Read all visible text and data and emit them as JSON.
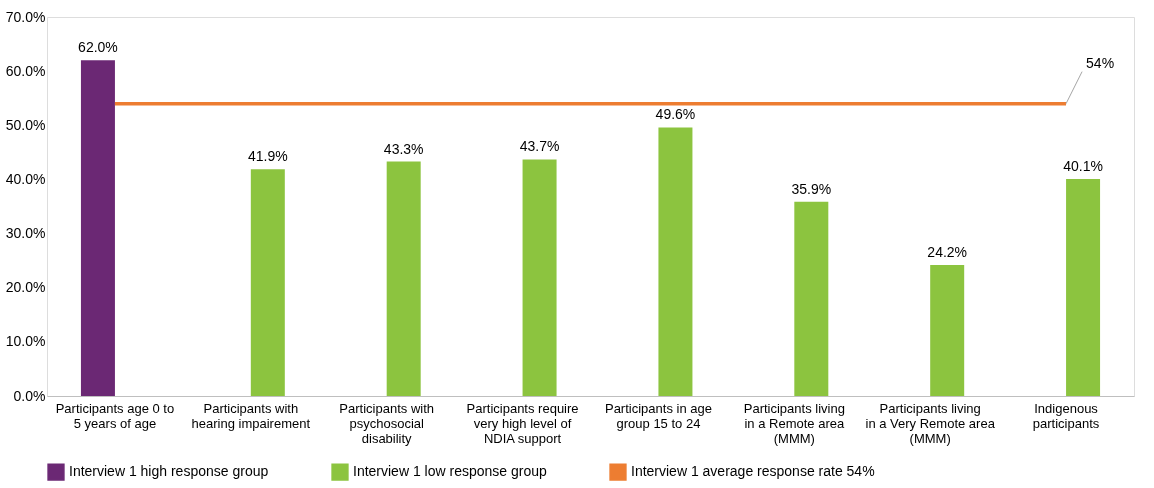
{
  "chart_data": {
    "type": "bar",
    "categories": [
      "Participants age 0 to 5 years of age",
      "Participants with hearing impairement",
      "Participants with psychosocial disability",
      "Participants require very high level of NDIA support",
      "Participants in age group 15 to 24",
      "Participants living in a Remote area (MMM)",
      "Participants living in a Very Remote area (MMM)",
      "Indigenous participants"
    ],
    "series": [
      {
        "name": "Interview 1 high response group",
        "color": "#6b2874",
        "values": [
          62.0,
          null,
          null,
          null,
          null,
          null,
          null,
          null
        ],
        "value_labels": [
          "62.0%",
          null,
          null,
          null,
          null,
          null,
          null,
          null
        ]
      },
      {
        "name": "Interview 1 low response group",
        "color": "#8cc43f",
        "values": [
          null,
          41.9,
          43.3,
          43.7,
          49.6,
          35.9,
          24.2,
          40.1
        ],
        "value_labels": [
          null,
          "41.9%",
          "43.3%",
          "43.7%",
          "49.6%",
          "35.9%",
          "24.2%",
          "40.1%"
        ]
      },
      {
        "name": "Interview 1 average response rate 54%",
        "type": "line",
        "color": "#ed7d31",
        "values": [
          54,
          54,
          54,
          54,
          54,
          54,
          54,
          54
        ]
      }
    ],
    "annotations": [
      {
        "text": "54%",
        "x": "Indigenous participants",
        "y": 54
      }
    ],
    "ylim": [
      0,
      70
    ],
    "yticks": [
      {
        "value": 0,
        "label": "0.0%"
      },
      {
        "value": 10,
        "label": "10.0%"
      },
      {
        "value": 20,
        "label": "20.0%"
      },
      {
        "value": 30,
        "label": "30.0%"
      },
      {
        "value": 40,
        "label": "40.0%"
      },
      {
        "value": 50,
        "label": "50.0%"
      },
      {
        "value": 60,
        "label": "60.0%"
      },
      {
        "value": 70,
        "label": "70.0%"
      }
    ],
    "grid": false,
    "legend": "bottom"
  }
}
